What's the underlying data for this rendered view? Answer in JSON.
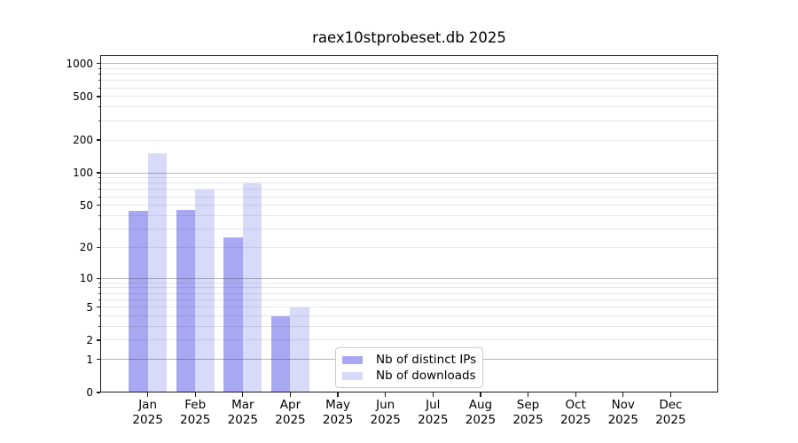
{
  "title": "raex10stprobeset.db 2025",
  "chart_data": {
    "type": "bar",
    "title": "raex10stprobeset.db 2025",
    "categories": [
      "Jan",
      "Feb",
      "Mar",
      "Apr",
      "May",
      "Jun",
      "Jul",
      "Aug",
      "Sep",
      "Oct",
      "Nov",
      "Dec"
    ],
    "year_label": "2025",
    "series": [
      {
        "name": "Nb of distinct IPs",
        "color": "#a7a7f2",
        "values": [
          44,
          45,
          25,
          4,
          0,
          0,
          0,
          0,
          0,
          0,
          0,
          0
        ]
      },
      {
        "name": "Nb of downloads",
        "color": "#d8daf9",
        "values": [
          150,
          70,
          80,
          5,
          0,
          0,
          0,
          0,
          0,
          0,
          0,
          0
        ]
      }
    ],
    "y_scale": "log1p",
    "ylim": [
      0,
      1200
    ],
    "y_ticks": [
      0,
      1,
      2,
      5,
      10,
      20,
      50,
      100,
      200,
      500,
      1000
    ],
    "y_major_grid": [
      1,
      10,
      100,
      1000
    ],
    "y_minor_grid": [
      2,
      3,
      4,
      5,
      6,
      7,
      8,
      9,
      20,
      30,
      40,
      50,
      60,
      70,
      80,
      90,
      200,
      300,
      400,
      500,
      600,
      700,
      800,
      900
    ],
    "grid": "horizontal-only",
    "legend_position": "lower center",
    "xlabel": "",
    "ylabel": ""
  },
  "legend": {
    "items": [
      {
        "label": "Nb of distinct IPs",
        "color": "#a7a7f2"
      },
      {
        "label": "Nb of downloads",
        "color": "#d8daf9"
      }
    ]
  },
  "colors": {
    "background": "#ffffff",
    "axis": "#1a1a1a",
    "major_grid": "rgba(60,60,60,0.38)",
    "minor_grid": "rgba(60,60,60,0.12)",
    "bar_distinct_ips": "#a7a7f2",
    "bar_downloads": "#d8daf9",
    "legend_border": "#cccccc"
  }
}
